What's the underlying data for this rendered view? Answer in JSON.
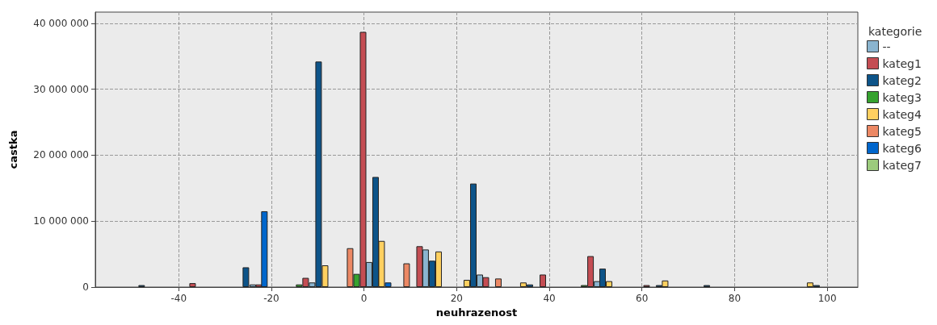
{
  "chart_data": {
    "type": "bar",
    "xlabel": "neuhrazenost",
    "ylabel": "castka",
    "legend_title": "kategorie",
    "legend": "right",
    "grid": true,
    "xlim": [
      -58,
      106.6
    ],
    "xticks": [
      -40,
      -20,
      0,
      20,
      40,
      60,
      80,
      100
    ],
    "ylim": [
      0,
      41700000
    ],
    "yticks": [
      {
        "value": 0,
        "label": "0"
      },
      {
        "value": 10000000,
        "label": "10 000 000"
      },
      {
        "value": 20000000,
        "label": "20 000 000"
      },
      {
        "value": 30000000,
        "label": "30 000 000"
      },
      {
        "value": 40000000,
        "label": "40 000 000"
      }
    ],
    "series": [
      {
        "name": "--",
        "color": "#8ab4cf",
        "x": [
          -24,
          -11.2,
          1.1,
          13.3,
          25,
          50.3
        ],
        "values": [
          400000,
          700000,
          3800000,
          5700000,
          1900000,
          900000
        ]
      },
      {
        "name": "kateg1",
        "color": "#c44d53",
        "x": [
          -37,
          -22.7,
          -12.6,
          -0.2,
          12,
          26.3,
          38.6,
          48.9,
          61
        ],
        "values": [
          600000,
          400000,
          1400000,
          38700000,
          6200000,
          1500000,
          1900000,
          4700000,
          300000
        ]
      },
      {
        "name": "kateg2",
        "color": "#0d5489",
        "x": [
          -48,
          -25.5,
          -9.8,
          2.5,
          14.7,
          23.6,
          35.8,
          51.5,
          63.7,
          74,
          97.7
        ],
        "values": [
          300000,
          3000000,
          34200000,
          16700000,
          4000000,
          15700000,
          400000,
          2800000,
          300000,
          300000,
          300000
        ]
      },
      {
        "name": "kateg3",
        "color": "#36a22f",
        "x": [
          -14,
          -1.6,
          47.5
        ],
        "values": [
          400000,
          2000000,
          300000
        ]
      },
      {
        "name": "kateg4",
        "color": "#ffd060",
        "x": [
          -8.4,
          3.8,
          16.1,
          22.2,
          34.4,
          52.9,
          65,
          96.3
        ],
        "values": [
          3300000,
          7000000,
          5400000,
          1100000,
          700000,
          900000,
          1000000,
          700000
        ]
      },
      {
        "name": "kateg5",
        "color": "#ec8864",
        "x": [
          -3,
          9.2,
          29
        ],
        "values": [
          5900000,
          3600000,
          1300000
        ]
      },
      {
        "name": "kateg6",
        "color": "#0066cc",
        "x": [
          -21.5,
          5.2
        ],
        "values": [
          11500000,
          700000
        ]
      },
      {
        "name": "kateg7",
        "color": "#9ccb7d"
      }
    ]
  }
}
